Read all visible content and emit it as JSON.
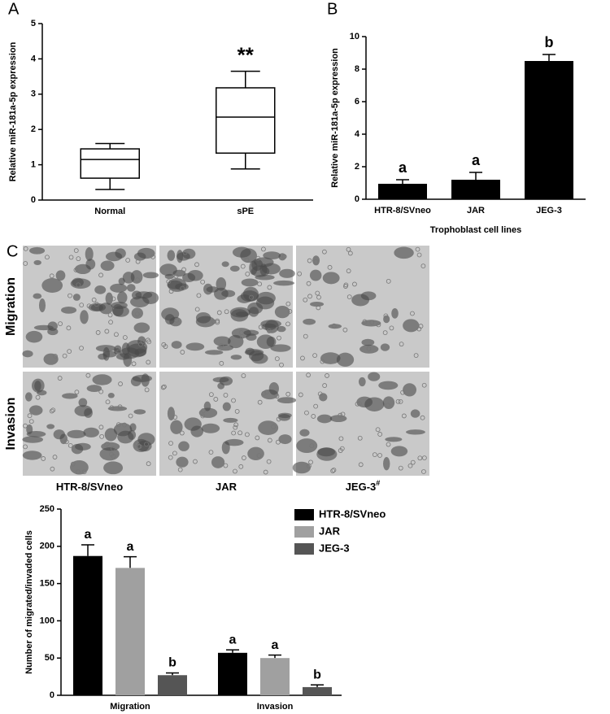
{
  "chart_data": [
    {
      "type": "box",
      "panel": "A",
      "y_label": "Relative miR-181a-5p expression",
      "categories": [
        "Normal",
        "sPE"
      ],
      "boxes": [
        {
          "low": 0.3,
          "q1": 0.62,
          "median": 1.15,
          "q3": 1.45,
          "high": 1.6
        },
        {
          "low": 0.88,
          "q1": 1.33,
          "median": 2.35,
          "q3": 3.18,
          "high": 3.65
        }
      ],
      "significance": [
        null,
        "**"
      ],
      "color": "#000000",
      "ylim": [
        0,
        5
      ],
      "yticks": [
        0,
        1,
        2,
        3,
        4,
        5
      ]
    },
    {
      "type": "bar",
      "panel": "B",
      "y_label": "Relative miR-181a-5p expression",
      "x_label": "Trophoblast cell lines",
      "categories": [
        "HTR-8/SVneo",
        "JAR",
        "JEG-3"
      ],
      "values": [
        0.95,
        1.2,
        8.5
      ],
      "errors": [
        0.25,
        0.45,
        0.4
      ],
      "significance": [
        "a",
        "a",
        "b"
      ],
      "color": "#000000",
      "ylim": [
        0,
        10
      ],
      "yticks": [
        0,
        2,
        4,
        6,
        8,
        10
      ]
    },
    {
      "type": "grouped_bar",
      "y_label": "Number of migrated/invaded cells",
      "categories": [
        "Migration",
        "Invasion"
      ],
      "series": [
        {
          "name": "HTR-8/SVneo",
          "color": "#000000",
          "values": [
            187,
            57
          ],
          "errors": [
            15,
            4
          ],
          "significance": [
            "a",
            "a"
          ]
        },
        {
          "name": "JAR",
          "color": "#a0a0a0",
          "values": [
            171,
            50
          ],
          "errors": [
            15,
            4
          ],
          "significance": [
            "a",
            "a"
          ]
        },
        {
          "name": "JEG-3",
          "color": "#555555",
          "values": [
            27,
            11
          ],
          "errors": [
            3,
            3
          ],
          "significance": [
            "b",
            "b"
          ]
        }
      ],
      "legend": "top-right",
      "ylim": [
        0,
        250
      ],
      "yticks": [
        0,
        50,
        100,
        150,
        200,
        250
      ]
    }
  ],
  "images": {
    "panel": "C",
    "row_labels": [
      "Migration",
      "Invasion"
    ],
    "column_labels": [
      {
        "label": "HTR-8/SVneo"
      },
      {
        "label": "JAR"
      },
      {
        "label": "JEG-3",
        "superscript": "#"
      }
    ]
  }
}
